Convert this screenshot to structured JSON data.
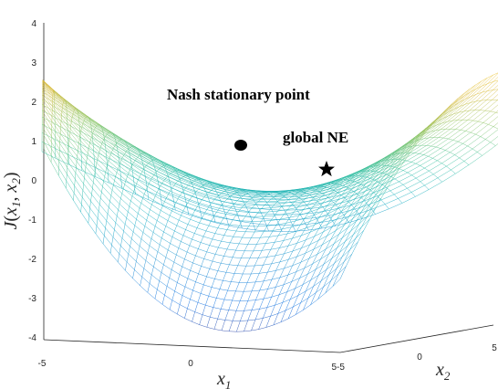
{
  "chart_data": {
    "type": "surface",
    "z_label": {
      "main": "J",
      "open": "(",
      "a": "x",
      "a_sub": "1",
      "comma": ", ",
      "b": "x",
      "b_sub": "2",
      "close": ")"
    },
    "x_label": {
      "main": "x",
      "sub": "1"
    },
    "y_label": {
      "main": "x",
      "sub": "2"
    },
    "z_ticks": [
      "4",
      "3",
      "2",
      "1",
      "0",
      "-1",
      "-2",
      "-3",
      "-4"
    ],
    "x1_ticks": [
      "-5",
      "0",
      "5"
    ],
    "x2_ticks": [
      "-5",
      "0",
      "5"
    ],
    "x1_range": [
      -5,
      5
    ],
    "x2_range": [
      -5,
      5
    ],
    "z_range": [
      -4,
      4
    ],
    "colormap": "parula",
    "annotations": [
      {
        "text": "Nash stationary point",
        "marker": "circle",
        "z": 1
      },
      {
        "text": "global NE",
        "marker": "star",
        "z": 0
      }
    ]
  }
}
